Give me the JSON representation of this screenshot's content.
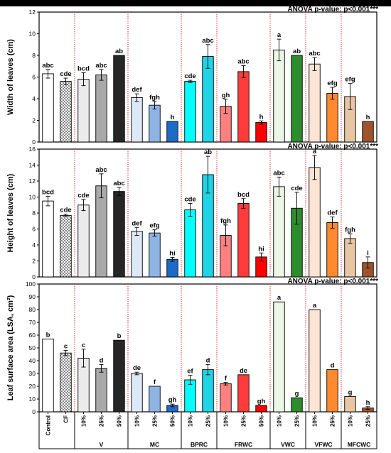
{
  "anova_label": "ANOVA p-value: p<0.001***",
  "categories": [
    "Control",
    "CF",
    "10%",
    "25%",
    "50%",
    "10%",
    "25%",
    "50%",
    "10%",
    "25%",
    "10%",
    "25%",
    "50%",
    "10%",
    "25%",
    "10%",
    "25%",
    "10%",
    "25%"
  ],
  "groups": [
    {
      "label": "",
      "span": [
        0,
        1
      ]
    },
    {
      "label": "V",
      "span": [
        2,
        4
      ]
    },
    {
      "label": "MC",
      "span": [
        5,
        7
      ]
    },
    {
      "label": "BPRC",
      "span": [
        8,
        9
      ]
    },
    {
      "label": "FRWC",
      "span": [
        10,
        12
      ]
    },
    {
      "label": "VWC",
      "span": [
        13,
        14
      ]
    },
    {
      "label": "VFWC",
      "span": [
        15,
        16
      ]
    },
    {
      "label": "MFCWC",
      "span": [
        17,
        18
      ]
    }
  ],
  "colors": [
    "#ffffff",
    "dots",
    "#ebebeb",
    "#a9a9a9",
    "#262626",
    "#dde9f7",
    "#8eb4e3",
    "#1c6cc7",
    "#00ffff",
    "#1fd4e6",
    "#ff8080",
    "#ff3b3b",
    "#ff0000",
    "#ebf7e4",
    "#2e8b2e",
    "#fde4d4",
    "#ff8a2e",
    "#e8c6a4",
    "#a0522d"
  ],
  "chart_data": [
    {
      "type": "bar",
      "ylabel": "Width of leaves (cm)",
      "ylim": [
        0,
        12
      ],
      "yticks": [
        0,
        2,
        4,
        6,
        8,
        10,
        12
      ],
      "values": [
        6.3,
        5.6,
        5.8,
        6.2,
        8.0,
        4.1,
        3.4,
        1.9,
        5.6,
        7.9,
        3.3,
        6.5,
        1.8,
        8.5,
        8.0,
        7.2,
        4.5,
        4.2,
        1.9
      ],
      "errors": [
        0.4,
        0.3,
        0.6,
        0.5,
        0,
        0.35,
        0.35,
        0,
        0.1,
        1.1,
        0.65,
        0.55,
        0.15,
        1.0,
        0,
        0.6,
        0.55,
        1.2,
        0
      ],
      "letters": [
        "abc",
        "cde",
        "bcd",
        "abc",
        "ab",
        "def",
        "fgh",
        "h",
        "cde",
        "abc",
        "gh",
        "abc",
        "h",
        "a",
        "ab",
        "abc",
        "efg",
        "efg",
        "h"
      ]
    },
    {
      "type": "bar",
      "ylabel": "Height of leaves (cm)",
      "ylim": [
        0,
        16
      ],
      "yticks": [
        0,
        2,
        4,
        6,
        8,
        10,
        12,
        14,
        16
      ],
      "values": [
        9.5,
        7.7,
        9.0,
        11.4,
        10.7,
        5.7,
        5.5,
        2.2,
        8.4,
        12.8,
        5.2,
        9.2,
        2.5,
        11.3,
        8.6,
        13.7,
        6.8,
        4.8,
        1.8
      ],
      "errors": [
        0.6,
        0.15,
        0.7,
        1.5,
        0.5,
        0.5,
        0.4,
        0.25,
        0.8,
        2.3,
        1.3,
        0.6,
        0.5,
        1.2,
        2.0,
        1.5,
        0.7,
        0.6,
        0.7
      ],
      "letters": [
        "bcd",
        "cde",
        "cde",
        "abc",
        "abc",
        "def",
        "efg",
        "hi",
        "cde",
        "ab",
        "fgh",
        "bcd",
        "hi",
        "abc",
        "cde",
        "a",
        "def",
        "fgh",
        "i"
      ]
    },
    {
      "type": "bar",
      "ylabel": "Leaf surface area (LSA, cm²)",
      "ylim": [
        0,
        100
      ],
      "yticks": [
        0,
        10,
        20,
        30,
        40,
        50,
        60,
        70,
        80,
        90,
        100
      ],
      "values": [
        57,
        46,
        42,
        34,
        56,
        30,
        20,
        5,
        25,
        33,
        22,
        29,
        5,
        86,
        11,
        80,
        33,
        12,
        3
      ],
      "errors": [
        0,
        2,
        7,
        3,
        0,
        1,
        0,
        1,
        3.5,
        4,
        1,
        0,
        0,
        0,
        0,
        0,
        0,
        0,
        1
      ],
      "letters": [
        "b",
        "c",
        "c",
        "d",
        "b",
        "de",
        "f",
        "gh",
        "ef",
        "d",
        "f",
        "de",
        "gh",
        "a",
        "g",
        "a",
        "d",
        "g",
        "h"
      ]
    }
  ]
}
